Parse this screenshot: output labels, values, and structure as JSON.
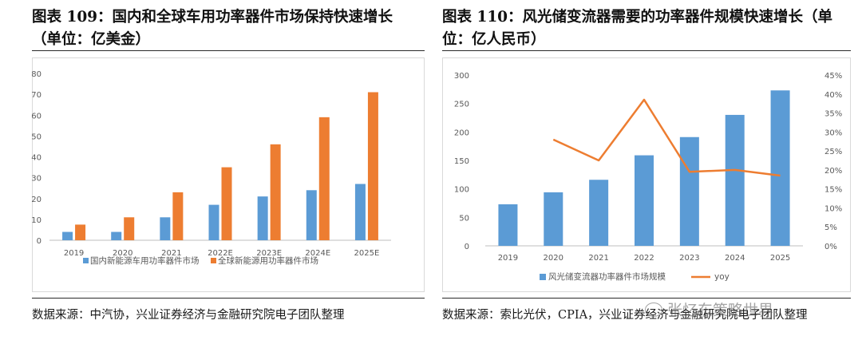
{
  "left": {
    "title": "图表 109：国内和全球车用功率器件市场保持快速增长（单位：亿美金）",
    "source": "数据来源：中汽协，兴业证券经济与金融研究院电子团队整理"
  },
  "right": {
    "title": "图表 110：风光储变流器需要的功率器件规模快速增长（单位：亿人民币）",
    "source": "数据来源：索比光伏，CPIA，兴业证券经济与金融研究院电子团队整理"
  },
  "watermark": "张忆东策略世界",
  "colors": {
    "blue": "#5b9bd5",
    "orange": "#ed7d31",
    "axis": "#bfbfbf",
    "grid": "#d9d9d9",
    "text": "#595959"
  },
  "chart_data": [
    {
      "type": "bar",
      "title": "",
      "categories": [
        "2019",
        "2020",
        "2021",
        "2022E",
        "2023E",
        "2024E",
        "2025E"
      ],
      "series": [
        {
          "name": "国内新能源车用功率器件市场",
          "values": [
            4,
            4,
            11,
            17,
            21,
            24,
            27
          ],
          "color": "#5b9bd5"
        },
        {
          "name": "全球新能源用功率器件市场",
          "values": [
            7.5,
            11,
            23,
            35,
            46,
            59,
            71
          ],
          "color": "#ed7d31"
        }
      ],
      "yticks": [
        "0",
        "10",
        "20",
        "30",
        "40",
        "50",
        "60",
        "70",
        "80"
      ],
      "ylim": [
        0,
        80
      ],
      "legend_position": "bottom"
    },
    {
      "type": "bar+line",
      "title": "",
      "categories": [
        "2019",
        "2020",
        "2021",
        "2022",
        "2023",
        "2024",
        "2025"
      ],
      "series": [
        {
          "name": "风光储变流器功率器件市场规模",
          "type": "bar",
          "axis": "left",
          "values": [
            73,
            94,
            116,
            159,
            191,
            230,
            273
          ],
          "color": "#5b9bd5"
        },
        {
          "name": "yoy",
          "type": "line",
          "axis": "right",
          "values": [
            null,
            28,
            22.5,
            38.5,
            19.5,
            20,
            18.5
          ],
          "color": "#ed7d31"
        }
      ],
      "yticks_left": [
        "0",
        "50",
        "100",
        "150",
        "200",
        "250",
        "300"
      ],
      "yticks_right": [
        "0%",
        "5%",
        "10%",
        "15%",
        "20%",
        "25%",
        "30%",
        "35%",
        "40%",
        "45%"
      ],
      "ylim_left": [
        0,
        300
      ],
      "ylim_right": [
        0,
        45
      ],
      "legend_position": "bottom"
    }
  ]
}
